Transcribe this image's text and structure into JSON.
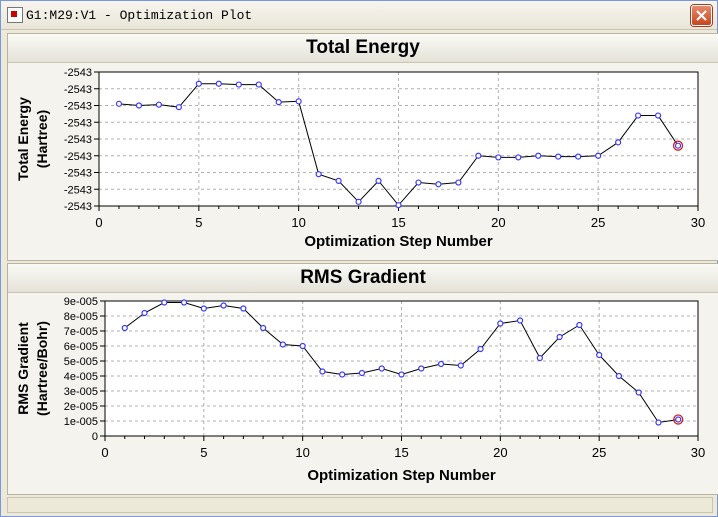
{
  "window": {
    "title": "G1:M29:V1 - Optimization Plot",
    "close_icon": "close-icon",
    "app_icon": "app-icon"
  },
  "chart_data": [
    {
      "type": "line",
      "title": "Total Energy",
      "xlabel": "Optimization Step Number",
      "ylabel": "Total Energy (Hartree)",
      "ylabel_lines": [
        "Total Energy",
        "(Hartree)"
      ],
      "xlim": [
        0,
        30
      ],
      "ylim": [
        0,
        8
      ],
      "x_ticks": [
        "0",
        "5",
        "10",
        "15",
        "20",
        "25",
        "30"
      ],
      "y_ticks": [
        "-2543",
        "-2543",
        "-2543",
        "-2543",
        "-2543",
        "-2543",
        "-2543",
        "-2543",
        "-2543"
      ],
      "grid": true,
      "x": [
        1,
        2,
        3,
        4,
        5,
        6,
        7,
        8,
        9,
        10,
        11,
        12,
        13,
        14,
        15,
        16,
        17,
        18,
        19,
        20,
        21,
        22,
        23,
        24,
        25,
        26,
        27,
        28,
        29
      ],
      "values": [
        6.1,
        6.0,
        6.05,
        5.9,
        7.3,
        7.3,
        7.25,
        7.25,
        6.2,
        6.25,
        1.9,
        1.5,
        0.25,
        1.5,
        0.05,
        1.4,
        1.3,
        1.4,
        3.0,
        2.9,
        2.9,
        3.0,
        2.95,
        2.95,
        3.0,
        3.8,
        5.4,
        5.4,
        3.6
      ],
      "marker_color": "#3a3aff",
      "line_color": "#000000",
      "current_point_color": "#d02020"
    },
    {
      "type": "line",
      "title": "RMS Gradient",
      "xlabel": "Optimization Step Number",
      "ylabel": "RMS Gradient (Hartree/Bohr)",
      "ylabel_lines": [
        "RMS Gradient",
        "(Hartree/Bohr)"
      ],
      "xlim": [
        0,
        30
      ],
      "ylim": [
        0,
        9e-05
      ],
      "x_ticks": [
        "0",
        "5",
        "10",
        "15",
        "20",
        "25",
        "30"
      ],
      "y_ticks": [
        "0",
        "1e-005",
        "2e-005",
        "3e-005",
        "4e-005",
        "5e-005",
        "6e-005",
        "7e-005",
        "8e-005",
        "9e-005"
      ],
      "grid": true,
      "x": [
        1,
        2,
        3,
        4,
        5,
        6,
        7,
        8,
        9,
        10,
        11,
        12,
        13,
        14,
        15,
        16,
        17,
        18,
        19,
        20,
        21,
        22,
        23,
        24,
        25,
        26,
        27,
        28,
        29
      ],
      "values": [
        7.2e-05,
        8.2e-05,
        8.9e-05,
        8.9e-05,
        8.5e-05,
        8.7e-05,
        8.5e-05,
        7.2e-05,
        6.1e-05,
        6e-05,
        4.3e-05,
        4.1e-05,
        4.2e-05,
        4.5e-05,
        4.1e-05,
        4.5e-05,
        4.8e-05,
        4.7e-05,
        5.8e-05,
        7.5e-05,
        7.7e-05,
        5.2e-05,
        6.6e-05,
        7.4e-05,
        5.4e-05,
        4e-05,
        2.9e-05,
        9e-06,
        1.1e-05
      ],
      "marker_color": "#3a3aff",
      "line_color": "#000000",
      "current_point_color": "#d02020"
    }
  ]
}
